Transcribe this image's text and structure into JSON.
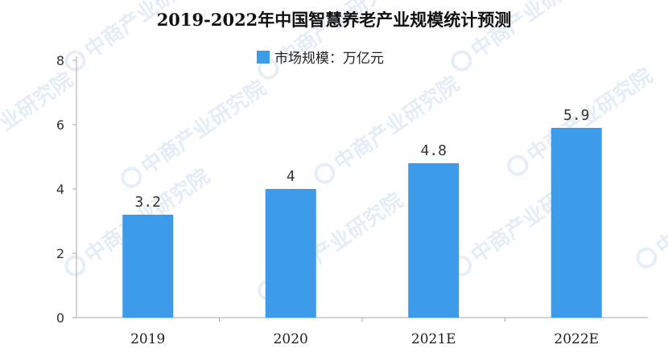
{
  "watermark": "中商产业研究院",
  "chart_data": {
    "type": "bar",
    "title": "2019-2022年中国智慧养老产业规模统计预测",
    "categories": [
      "2019",
      "2020",
      "2021E",
      "2022E"
    ],
    "series": [
      {
        "name": "市场规模：万亿元",
        "values": [
          3.2,
          4,
          4.8,
          5.9
        ]
      }
    ],
    "data_labels": [
      "3.2",
      "4",
      "4.8",
      "5.9"
    ],
    "ylim": [
      0,
      8
    ],
    "yticks": [
      0,
      2,
      4,
      6,
      8
    ],
    "xlabel": "",
    "ylabel": "",
    "grid": false,
    "legend_position": "top-center",
    "bar_color": "#3d9be9"
  }
}
